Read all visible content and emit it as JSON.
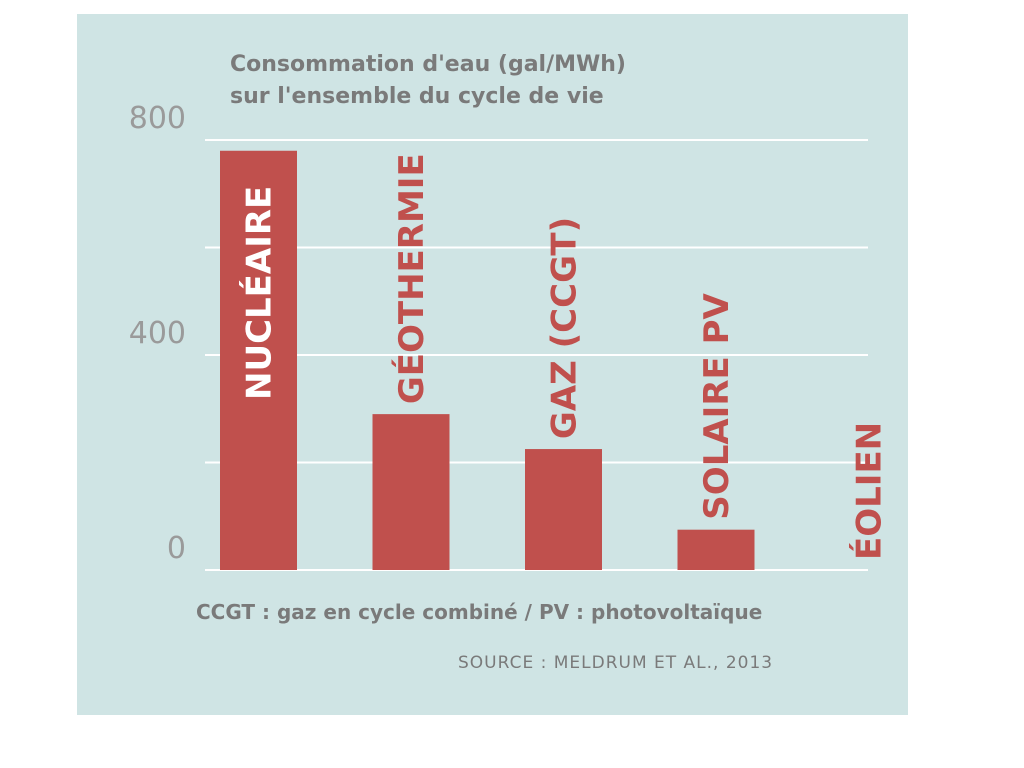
{
  "chart_data": {
    "type": "bar",
    "title_line1": "Consommation d'eau (gal/MWh)",
    "title_line2": "sur l'ensemble du cycle de vie",
    "categories": [
      "NUCLÉAIRE",
      "GÉOTHERMIE",
      "GAZ (CCGT)",
      "SOLAIRE PV",
      "ÉOLIEN"
    ],
    "values": [
      780,
      290,
      225,
      75,
      0
    ],
    "ylim": [
      0,
      800
    ],
    "yticks": [
      0,
      400,
      800
    ],
    "gridlines": [
      0,
      200,
      400,
      600,
      800
    ],
    "grid": true,
    "bar_color": "#c0504d",
    "label_inside_color": "#ffffff",
    "label_outside_color": "#c0504d",
    "footnote": "CCGT : gaz en cycle combiné / PV : photovoltaïque",
    "source": "SOURCE : MELDRUM ET AL., 2013"
  }
}
